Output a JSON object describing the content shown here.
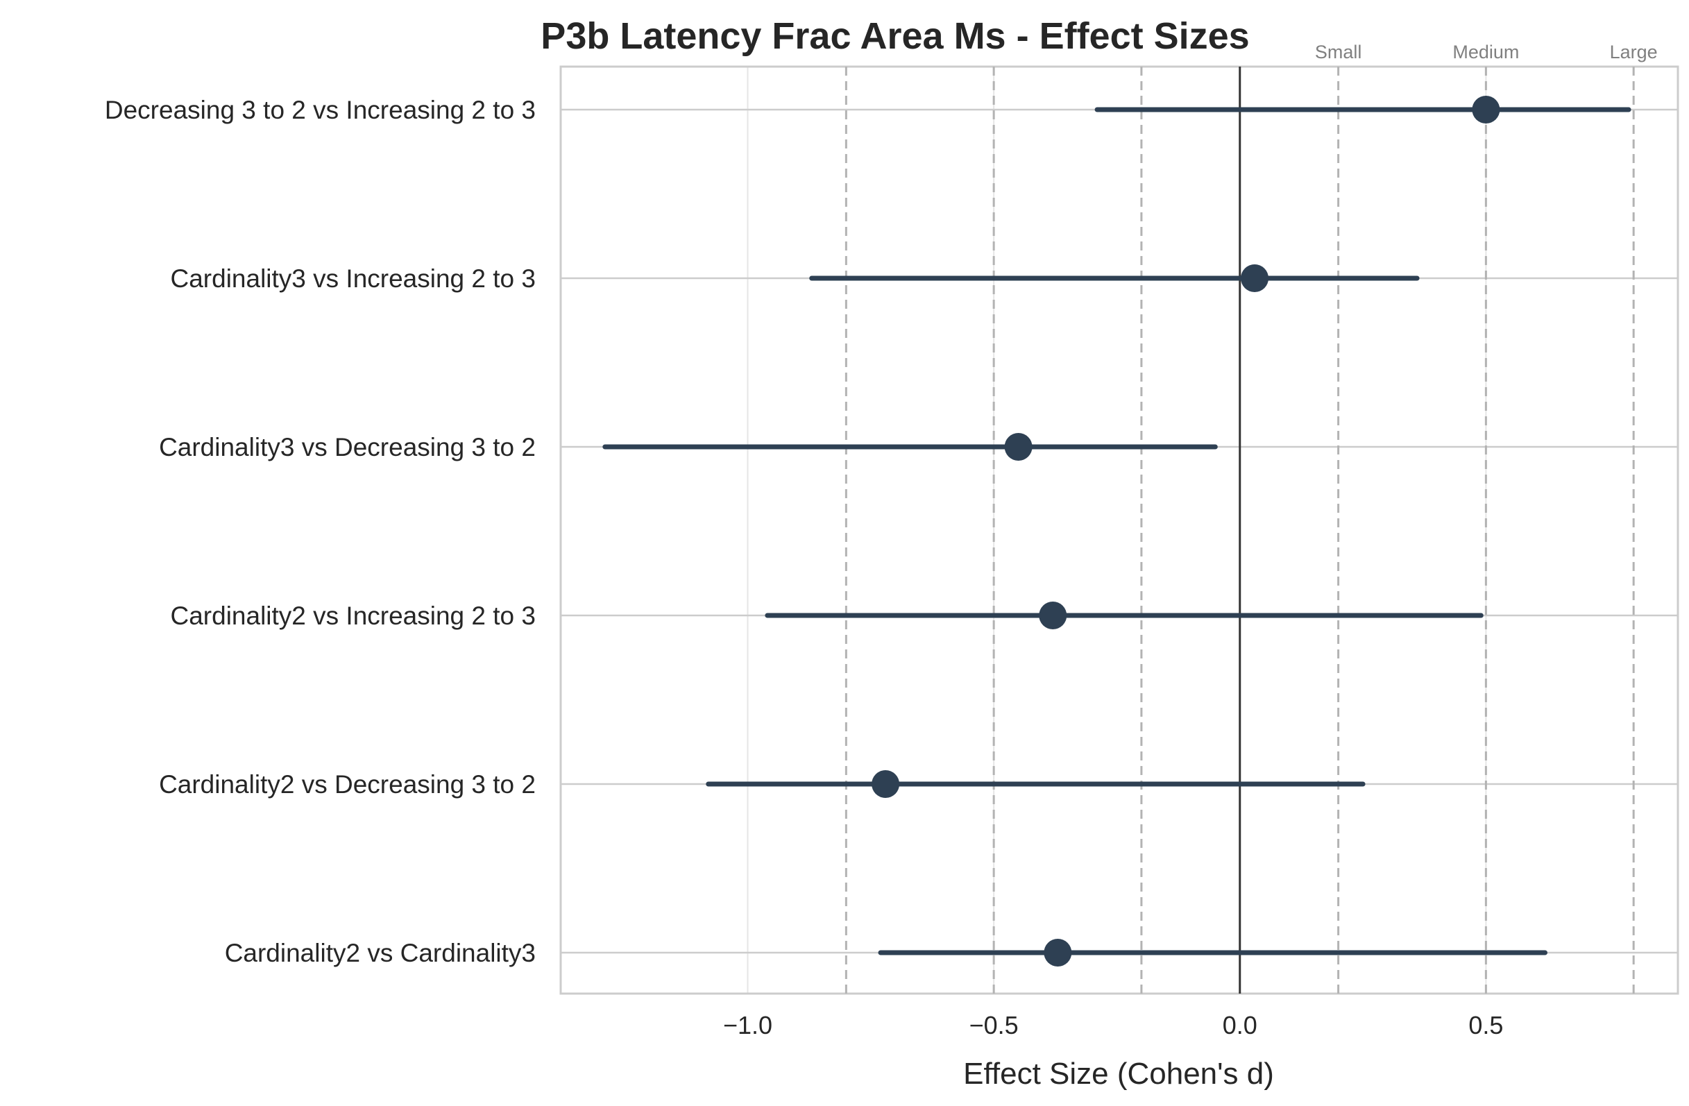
{
  "chart_data": {
    "type": "forest",
    "title": "P3b Latency Frac Area Ms - Effect Sizes",
    "xlabel": "Effect Size (Cohen's d)",
    "ylabel": "",
    "xlim": [
      -1.38,
      0.89
    ],
    "xticks": [
      -1.0,
      -0.5,
      0.0,
      0.5
    ],
    "xtick_labels": [
      "−1.0",
      "−0.5",
      "0.0",
      "0.5"
    ],
    "grid": true,
    "reference_line": 0.0,
    "thresholds": [
      {
        "value": -0.8,
        "label": ""
      },
      {
        "value": -0.5,
        "label": ""
      },
      {
        "value": -0.2,
        "label": ""
      },
      {
        "value": 0.2,
        "label": "Small"
      },
      {
        "value": 0.5,
        "label": "Medium"
      },
      {
        "value": 0.8,
        "label": "Large"
      }
    ],
    "comparisons": [
      {
        "label": "Decreasing 3 to 2 vs Increasing 2 to 3",
        "d": 0.5,
        "ci": [
          -0.29,
          0.79
        ]
      },
      {
        "label": "Cardinality3 vs Increasing 2 to 3",
        "d": 0.03,
        "ci": [
          -0.87,
          0.36
        ]
      },
      {
        "label": "Cardinality3 vs Decreasing 3 to 2",
        "d": -0.45,
        "ci": [
          -1.29,
          -0.05
        ]
      },
      {
        "label": "Cardinality2 vs Increasing 2 to 3",
        "d": -0.38,
        "ci": [
          -0.96,
          0.49
        ]
      },
      {
        "label": "Cardinality2 vs Decreasing 3 to 2",
        "d": -0.72,
        "ci": [
          -1.08,
          0.25
        ]
      },
      {
        "label": "Cardinality2 vs Cardinality3",
        "d": -0.37,
        "ci": [
          -0.73,
          0.62
        ]
      }
    ],
    "colors": {
      "marker": "#2e4053",
      "frame": "#cccccc",
      "grid": "#e6e6e6",
      "zero_line": "#333333",
      "threshold": "#b3b3b3",
      "threshold_text": "#808080"
    }
  }
}
